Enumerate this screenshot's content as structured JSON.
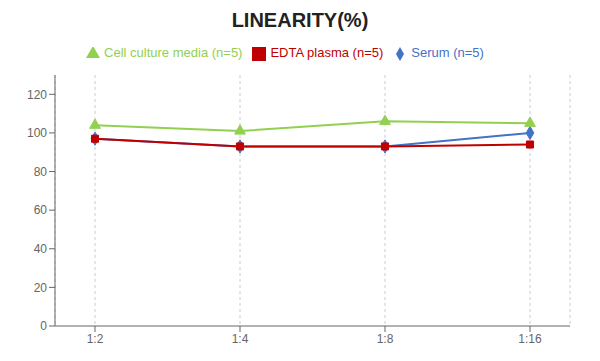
{
  "chart_data": {
    "type": "line",
    "title": "LINEARITY(%)",
    "categories": [
      "1:2",
      "1:4",
      "1:8",
      "1:16"
    ],
    "series": [
      {
        "name": "Serum (n=5)",
        "color": "#4472C4",
        "marker": "diamond",
        "values": [
          97,
          93,
          93,
          100
        ]
      },
      {
        "name": "EDTA plasma (n=5)",
        "color": "#C00000",
        "marker": "square",
        "values": [
          97,
          93,
          93,
          94
        ]
      },
      {
        "name": "Cell culture media (n=5)",
        "color": "#92D050",
        "marker": "triangle",
        "values": [
          104,
          101,
          106,
          105
        ]
      }
    ],
    "ylim": [
      0,
      130
    ],
    "yticks": [
      0,
      20,
      40,
      60,
      80,
      100,
      120
    ],
    "grid": "x",
    "legend": "top"
  }
}
